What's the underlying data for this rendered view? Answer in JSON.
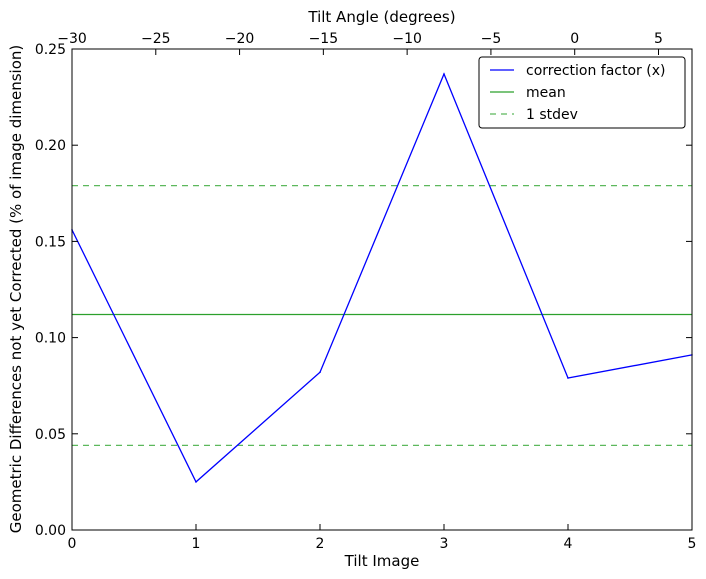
{
  "chart_data": {
    "type": "line",
    "xlabel": "Tilt Image",
    "ylabel": "Geometric Differences not yet Corrected (% of image dimension)",
    "top_xlabel": "Tilt Angle (degrees)",
    "xlim": [
      0,
      5
    ],
    "ylim": [
      0,
      0.25
    ],
    "top_xlim": [
      -30,
      7
    ],
    "x_ticks": [
      "0",
      "1",
      "2",
      "3",
      "4",
      "5"
    ],
    "x_tick_values": [
      0,
      1,
      2,
      3,
      4,
      5
    ],
    "y_ticks": [
      "0.00",
      "0.05",
      "0.10",
      "0.15",
      "0.20",
      "0.25"
    ],
    "y_tick_values": [
      0,
      0.05,
      0.1,
      0.15,
      0.2,
      0.25
    ],
    "top_x_ticks": [
      "−30",
      "−25",
      "−20",
      "−15",
      "−10",
      "−5",
      "0",
      "5"
    ],
    "top_x_tick_values": [
      -30,
      -25,
      -20,
      -15,
      -10,
      -5,
      0,
      5
    ],
    "grid": false,
    "legend_position": "top-right",
    "series": [
      {
        "name": "correction factor (x)",
        "color": "#0000ff",
        "style": "solid",
        "x": [
          0,
          1,
          2,
          3,
          4,
          5
        ],
        "values": [
          0.156,
          0.025,
          0.082,
          0.237,
          0.079,
          0.091
        ]
      },
      {
        "name": "mean",
        "color": "#2ca02c",
        "style": "solid",
        "y": 0.112
      },
      {
        "name": "1 stdev",
        "color": "#5cb85c",
        "style": "dashed",
        "y_values": [
          0.179,
          0.044
        ]
      }
    ]
  }
}
